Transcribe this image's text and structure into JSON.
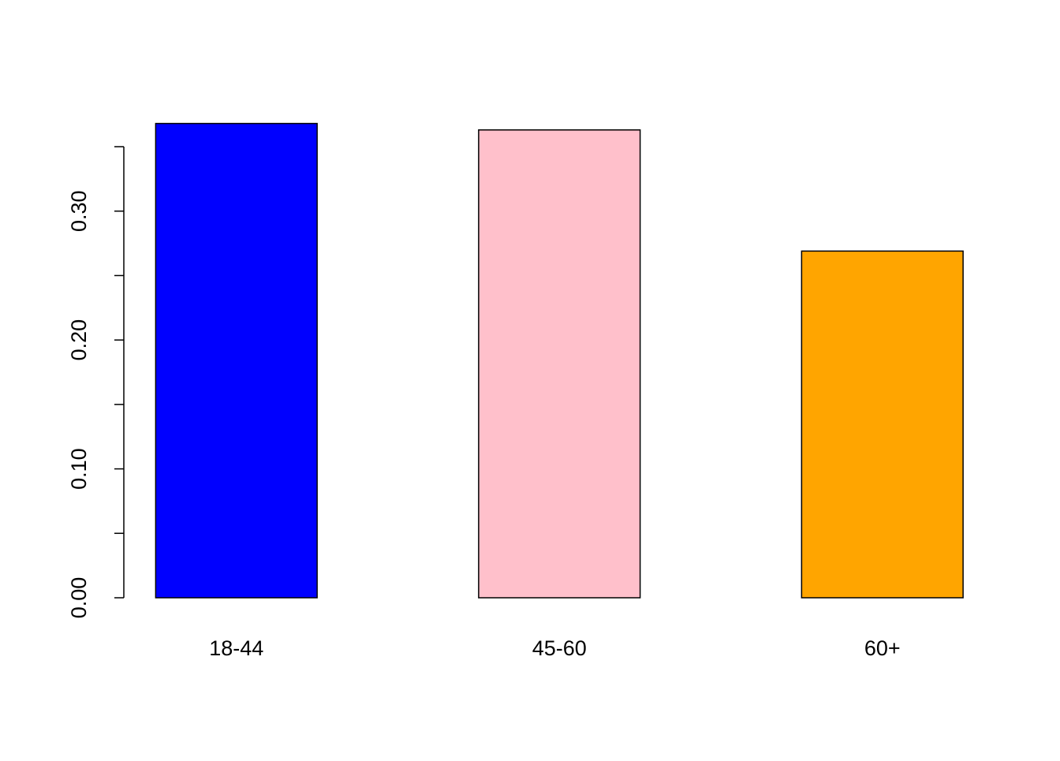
{
  "chart_data": {
    "type": "bar",
    "categories": [
      "18-44",
      "45-60",
      "60+"
    ],
    "values": [
      0.368,
      0.363,
      0.269
    ],
    "colors": [
      "#0000ff",
      "#ffc0cb",
      "#ffa500"
    ],
    "ylim": [
      0,
      0.35
    ],
    "yticks": [
      {
        "value": 0,
        "label": "0.00"
      },
      {
        "value": 0.1,
        "label": "0.10"
      },
      {
        "value": 0.2,
        "label": "0.20"
      },
      {
        "value": 0.3,
        "label": "0.30"
      }
    ],
    "yminor": [
      0.05,
      0.15,
      0.25,
      0.35
    ],
    "grid": false
  }
}
